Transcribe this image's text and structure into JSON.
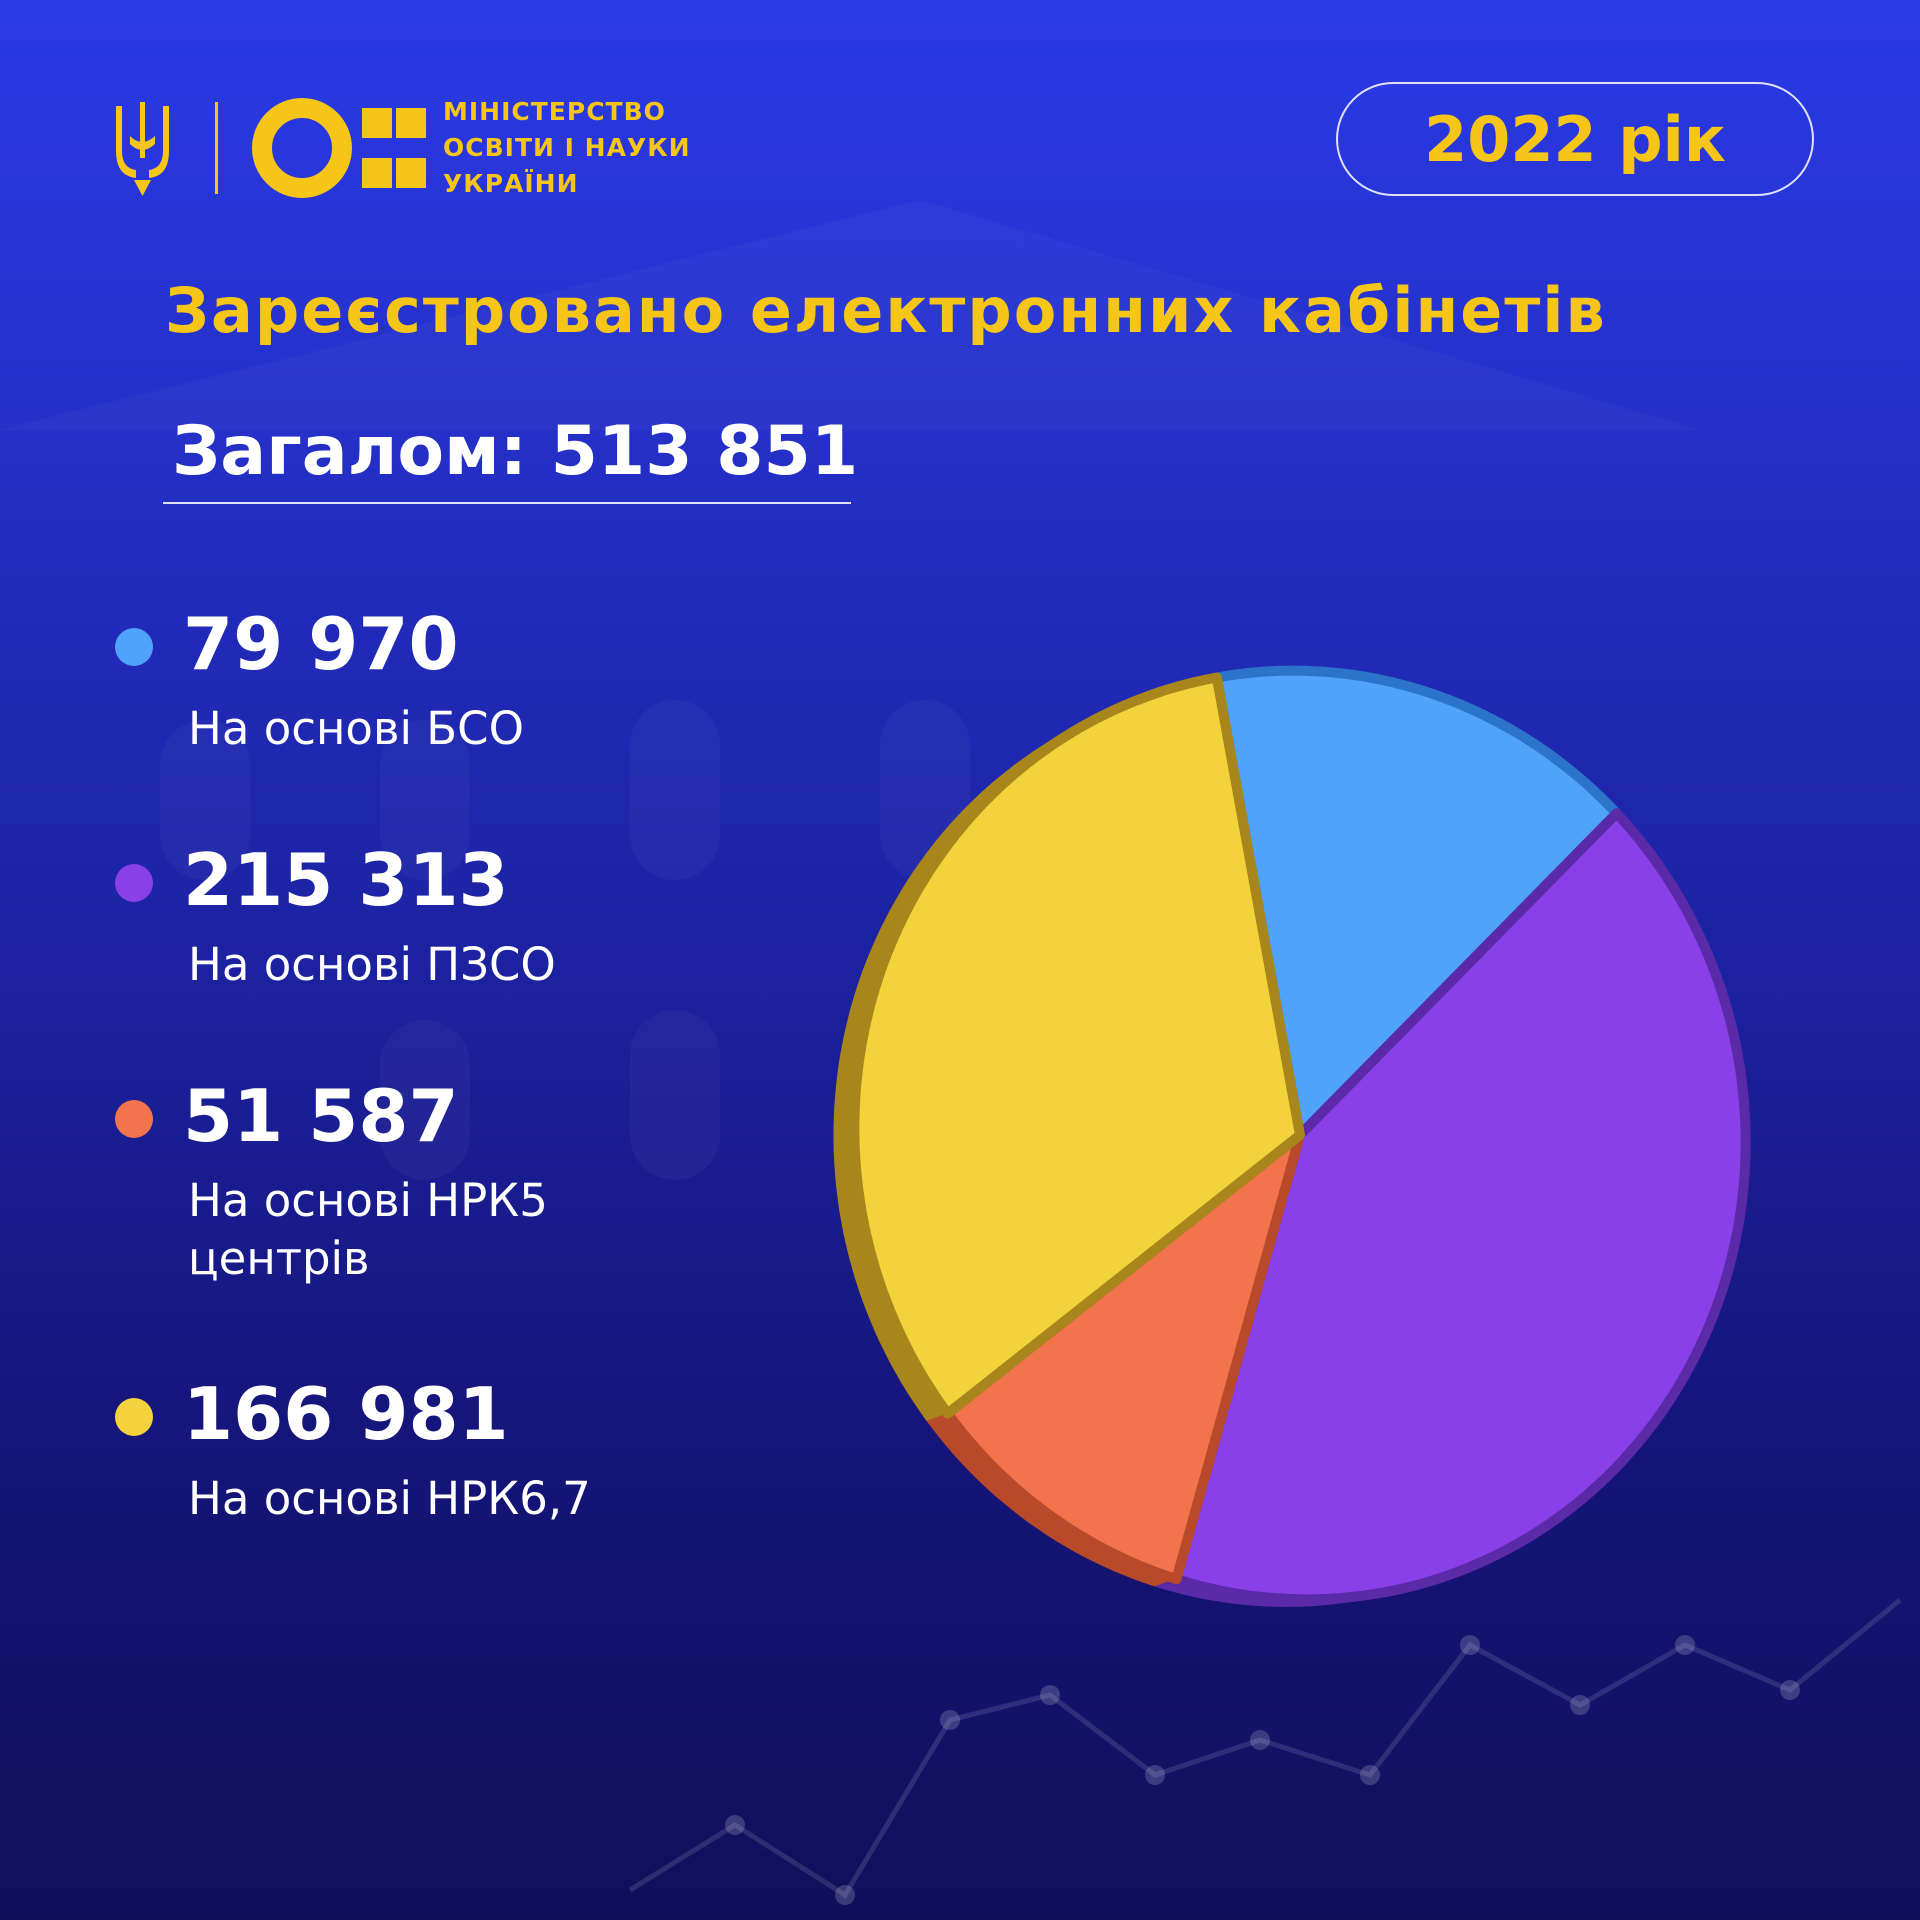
{
  "header": {
    "ministry_line1": "МІНІСТЕРСТВО",
    "ministry_line2": "ОСВІТИ І НАУКИ",
    "ministry_line3": "УКРАЇНИ",
    "year": "2022 рік"
  },
  "colors": {
    "accent": "#f5c518",
    "blue": "#4fa3fb",
    "purple": "#8a40e8",
    "orange": "#f2744d",
    "yellow": "#f4d23c"
  },
  "chart_data": {
    "type": "pie",
    "title": "Зареєстровано електронних кабінетів",
    "total_label": "Загалом: 513 851",
    "slices": [
      {
        "value": 79970,
        "value_label": "79 970",
        "label_lines": [
          "На основі БСО"
        ],
        "color": "#4fa3fb",
        "side": "#2b74c9"
      },
      {
        "value": 215313,
        "value_label": "215 313",
        "label_lines": [
          "На основі ПЗСО"
        ],
        "color": "#8a40e8",
        "side": "#5a2aa8"
      },
      {
        "value": 51587,
        "value_label": "51 587",
        "label_lines": [
          "На основі НРК5",
          "центрів"
        ],
        "color": "#f2744d",
        "side": "#b84a2b"
      },
      {
        "value": 166981,
        "value_label": "166 981",
        "label_lines": [
          "На основі НРК6,7"
        ],
        "color": "#f4d23c",
        "side": "#a8861c"
      }
    ]
  }
}
